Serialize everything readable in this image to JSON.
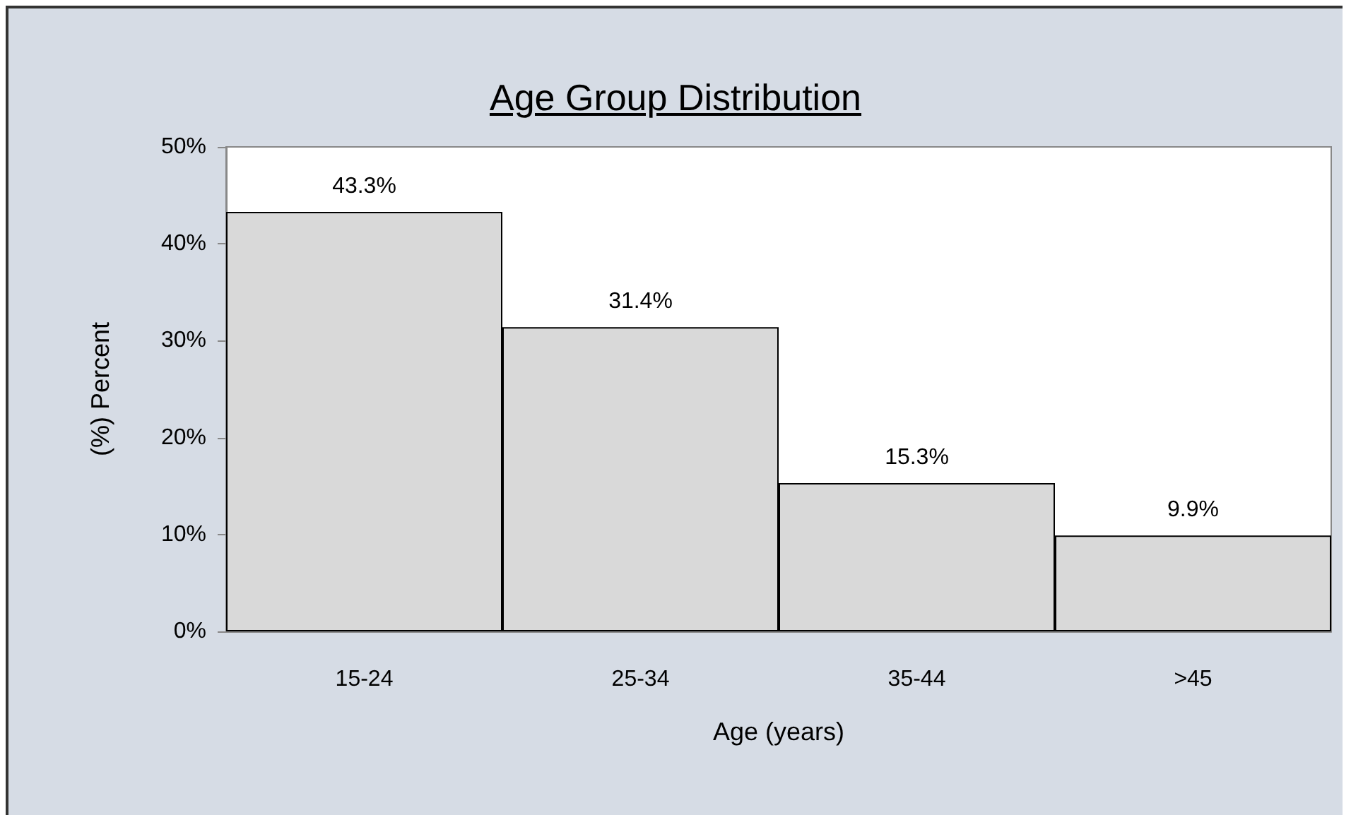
{
  "chart_data": {
    "type": "bar",
    "title": "Age Group Distribution",
    "xlabel": "Age (years)",
    "ylabel": "(%) Percent",
    "categories": [
      "15-24",
      "25-34",
      "35-44",
      ">45"
    ],
    "values": [
      43.3,
      31.4,
      15.3,
      9.9
    ],
    "value_labels": [
      "43.3%",
      "31.4%",
      "15.3%",
      "9.9%"
    ],
    "color": "#d9d9d9",
    "ylim": [
      0,
      50
    ],
    "yticks": [
      {
        "value": 0,
        "label": "0%"
      },
      {
        "value": 10,
        "label": "10%"
      },
      {
        "value": 20,
        "label": "20%"
      },
      {
        "value": 30,
        "label": "30%"
      },
      {
        "value": 40,
        "label": "40%"
      },
      {
        "value": 50,
        "label": "50%"
      }
    ]
  }
}
